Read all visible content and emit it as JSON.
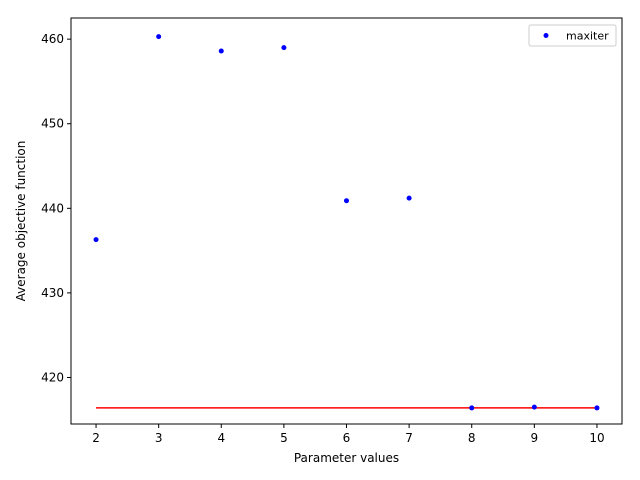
{
  "chart_data": {
    "type": "scatter",
    "title": "",
    "xlabel": "Parameter values",
    "ylabel": "Average objective function",
    "xlim": [
      1.6,
      10.4
    ],
    "ylim": [
      414.5,
      462.5
    ],
    "xticks": [
      2,
      3,
      4,
      5,
      6,
      7,
      8,
      9,
      10
    ],
    "yticks": [
      420,
      430,
      440,
      450,
      460
    ],
    "grid": false,
    "legend_position": "top-right",
    "series": [
      {
        "name": "maxiter",
        "marker": "point",
        "color": "#0000ff",
        "x": [
          2,
          3,
          4,
          5,
          6,
          7,
          8,
          9,
          10
        ],
        "y": [
          436.3,
          460.3,
          458.6,
          459.0,
          440.9,
          441.2,
          416.4,
          416.5,
          416.4
        ]
      }
    ],
    "reference_line": {
      "color": "#ff0000",
      "y": 416.4,
      "x_from": 2,
      "x_to": 10
    }
  }
}
